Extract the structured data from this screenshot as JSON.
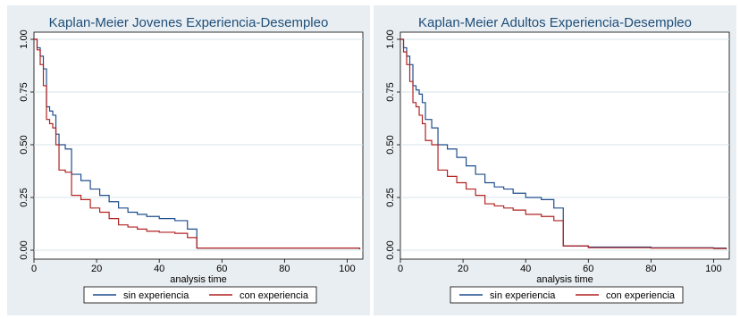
{
  "chart_data": [
    {
      "type": "line",
      "title": "Kaplan-Meier Jovenes Experiencia-Desempleo",
      "xlabel": "analysis time",
      "ylabel": "",
      "xlim": [
        0,
        105
      ],
      "ylim": [
        0,
        1
      ],
      "xticks": [
        "0",
        "20",
        "40",
        "60",
        "80",
        "100"
      ],
      "yticks": [
        "0.00",
        "0.25",
        "0.50",
        "0.75",
        "1.00"
      ],
      "grid": true,
      "legend_position": "bottom",
      "series": [
        {
          "name": "sin experiencia",
          "color": "#1f4e8c",
          "x": [
            0,
            1,
            2,
            3,
            4,
            5,
            6,
            7,
            8,
            10,
            12,
            15,
            18,
            21,
            24,
            27,
            30,
            33,
            36,
            40,
            45,
            49,
            52,
            55,
            60,
            80,
            100,
            104
          ],
          "y": [
            1.0,
            0.96,
            0.92,
            0.86,
            0.68,
            0.66,
            0.64,
            0.55,
            0.5,
            0.48,
            0.36,
            0.33,
            0.29,
            0.26,
            0.23,
            0.2,
            0.18,
            0.17,
            0.16,
            0.15,
            0.14,
            0.1,
            0.01,
            0.01,
            0.01,
            0.01,
            0.01,
            0.005
          ]
        },
        {
          "name": "con experiencia",
          "color": "#b22222",
          "x": [
            0,
            1,
            2,
            3,
            4,
            5,
            6,
            7,
            8,
            10,
            12,
            15,
            18,
            21,
            24,
            27,
            30,
            33,
            36,
            40,
            45,
            49,
            52,
            55,
            60,
            80,
            100,
            104
          ],
          "y": [
            1.0,
            0.95,
            0.88,
            0.78,
            0.62,
            0.6,
            0.58,
            0.5,
            0.38,
            0.37,
            0.26,
            0.24,
            0.2,
            0.18,
            0.15,
            0.12,
            0.11,
            0.1,
            0.09,
            0.085,
            0.08,
            0.06,
            0.01,
            0.01,
            0.01,
            0.01,
            0.01,
            0.005
          ]
        }
      ]
    },
    {
      "type": "line",
      "title": "Kaplan-Meier Adultos Experiencia-Desempleo",
      "xlabel": "analysis time",
      "ylabel": "",
      "xlim": [
        0,
        105
      ],
      "ylim": [
        0,
        1
      ],
      "xticks": [
        "0",
        "20",
        "40",
        "60",
        "80",
        "100"
      ],
      "yticks": [
        "0.00",
        "0.25",
        "0.50",
        "0.75",
        "1.00"
      ],
      "grid": true,
      "legend_position": "bottom",
      "series": [
        {
          "name": "sin experiencia",
          "color": "#1f4e8c",
          "x": [
            0,
            1,
            2,
            3,
            4,
            5,
            6,
            7,
            8,
            10,
            12,
            15,
            18,
            21,
            24,
            27,
            30,
            33,
            36,
            40,
            45,
            49,
            52,
            55,
            60,
            80,
            100,
            104
          ],
          "y": [
            1.0,
            0.96,
            0.92,
            0.88,
            0.78,
            0.76,
            0.74,
            0.7,
            0.62,
            0.58,
            0.5,
            0.48,
            0.44,
            0.4,
            0.36,
            0.32,
            0.3,
            0.29,
            0.27,
            0.25,
            0.24,
            0.2,
            0.02,
            0.02,
            0.015,
            0.012,
            0.01,
            0.005
          ]
        },
        {
          "name": "con experiencia",
          "color": "#b22222",
          "x": [
            0,
            1,
            2,
            3,
            4,
            5,
            6,
            7,
            8,
            10,
            12,
            15,
            18,
            21,
            24,
            27,
            30,
            33,
            36,
            40,
            45,
            49,
            52,
            55,
            60,
            80,
            100,
            104
          ],
          "y": [
            1.0,
            0.94,
            0.88,
            0.8,
            0.7,
            0.68,
            0.64,
            0.6,
            0.52,
            0.5,
            0.38,
            0.35,
            0.32,
            0.29,
            0.26,
            0.22,
            0.21,
            0.2,
            0.19,
            0.17,
            0.16,
            0.14,
            0.02,
            0.02,
            0.012,
            0.01,
            0.008,
            0.005
          ]
        }
      ]
    }
  ]
}
